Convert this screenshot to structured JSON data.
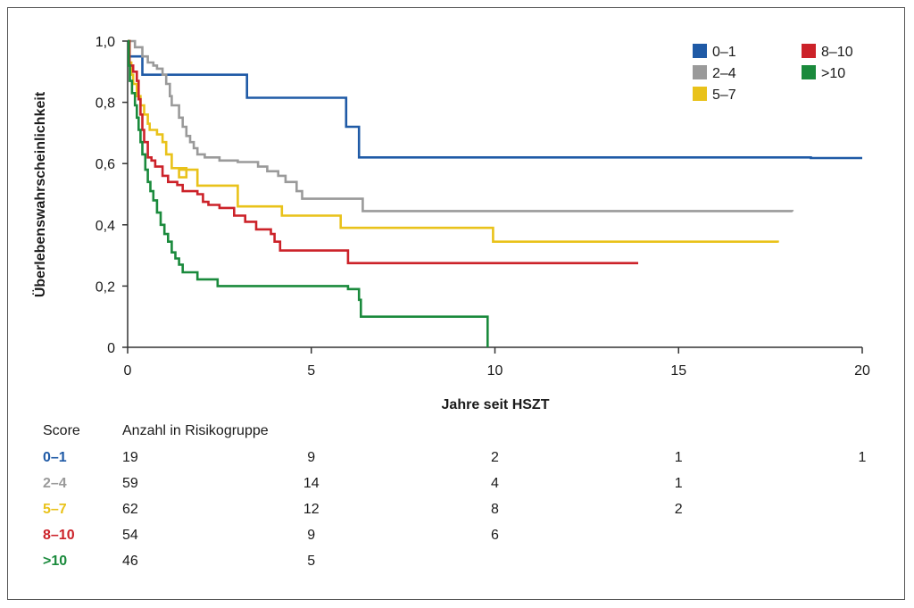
{
  "chart_data": {
    "type": "line",
    "step": true,
    "xlabel": "Jahre seit HSZT",
    "ylabel": "Überlebenswahrscheinlichkeit",
    "xlim": [
      0,
      20
    ],
    "ylim": [
      0,
      1
    ],
    "x_ticks": [
      0,
      5,
      10,
      15,
      20
    ],
    "x_tick_labels": [
      "0",
      "5",
      "10",
      "15",
      "20"
    ],
    "y_ticks": [
      0,
      0.2,
      0.4,
      0.6,
      0.8,
      1.0
    ],
    "y_tick_labels": [
      "0",
      "0,2",
      "0,4",
      "0,6",
      "0,8",
      "1,0"
    ],
    "grid": false,
    "legend_position": "top-right",
    "series": [
      {
        "name": "0–1",
        "color": "#1f5aa6",
        "points": [
          [
            0,
            1.0
          ],
          [
            0.05,
            0.95
          ],
          [
            0.4,
            0.89
          ],
          [
            3.25,
            0.815
          ],
          [
            5.95,
            0.72
          ],
          [
            6.3,
            0.62
          ],
          [
            18.6,
            0.618
          ],
          [
            20,
            0.618
          ]
        ]
      },
      {
        "name": "2–4",
        "color": "#9a9a9a",
        "points": [
          [
            0,
            1.0
          ],
          [
            0.2,
            0.98
          ],
          [
            0.4,
            0.95
          ],
          [
            0.55,
            0.93
          ],
          [
            0.7,
            0.92
          ],
          [
            0.8,
            0.91
          ],
          [
            0.95,
            0.89
          ],
          [
            1.05,
            0.86
          ],
          [
            1.15,
            0.82
          ],
          [
            1.2,
            0.79
          ],
          [
            1.4,
            0.75
          ],
          [
            1.5,
            0.72
          ],
          [
            1.6,
            0.69
          ],
          [
            1.7,
            0.67
          ],
          [
            1.8,
            0.65
          ],
          [
            1.9,
            0.63
          ],
          [
            2.1,
            0.62
          ],
          [
            2.5,
            0.61
          ],
          [
            3.0,
            0.605
          ],
          [
            3.55,
            0.59
          ],
          [
            3.8,
            0.575
          ],
          [
            4.1,
            0.56
          ],
          [
            4.3,
            0.54
          ],
          [
            4.6,
            0.51
          ],
          [
            4.75,
            0.485
          ],
          [
            6.4,
            0.445
          ],
          [
            18.1,
            0.444
          ]
        ]
      },
      {
        "name": "5–7",
        "color": "#e9c21a",
        "points": [
          [
            0,
            1.0
          ],
          [
            0.05,
            0.93
          ],
          [
            0.1,
            0.89
          ],
          [
            0.15,
            0.86
          ],
          [
            0.25,
            0.82
          ],
          [
            0.35,
            0.79
          ],
          [
            0.45,
            0.76
          ],
          [
            0.55,
            0.73
          ],
          [
            0.6,
            0.71
          ],
          [
            0.8,
            0.695
          ],
          [
            0.95,
            0.67
          ],
          [
            1.05,
            0.63
          ],
          [
            1.2,
            0.585
          ],
          [
            1.6,
            0.555
          ],
          [
            1.4,
            0.58
          ],
          [
            1.9,
            0.528
          ],
          [
            3.0,
            0.46
          ],
          [
            4.2,
            0.43
          ],
          [
            5.8,
            0.39
          ],
          [
            9.95,
            0.345
          ],
          [
            17.7,
            0.342
          ]
        ]
      },
      {
        "name": "8–10",
        "color": "#cc2229",
        "points": [
          [
            0,
            1.0
          ],
          [
            0.05,
            0.92
          ],
          [
            0.15,
            0.9
          ],
          [
            0.25,
            0.87
          ],
          [
            0.3,
            0.81
          ],
          [
            0.35,
            0.76
          ],
          [
            0.4,
            0.71
          ],
          [
            0.45,
            0.67
          ],
          [
            0.55,
            0.62
          ],
          [
            0.65,
            0.61
          ],
          [
            0.75,
            0.59
          ],
          [
            0.95,
            0.56
          ],
          [
            1.1,
            0.54
          ],
          [
            1.35,
            0.53
          ],
          [
            1.5,
            0.51
          ],
          [
            1.9,
            0.5
          ],
          [
            2.05,
            0.475
          ],
          [
            2.2,
            0.465
          ],
          [
            2.5,
            0.455
          ],
          [
            2.9,
            0.43
          ],
          [
            3.2,
            0.41
          ],
          [
            3.5,
            0.385
          ],
          [
            3.9,
            0.37
          ],
          [
            4.0,
            0.345
          ],
          [
            4.15,
            0.316
          ],
          [
            6.0,
            0.275
          ],
          [
            13.9,
            0.275
          ]
        ]
      },
      {
        "name": ">10",
        "color": "#1a8a3c",
        "points": [
          [
            0,
            1.0
          ],
          [
            0.03,
            0.92
          ],
          [
            0.06,
            0.87
          ],
          [
            0.12,
            0.83
          ],
          [
            0.2,
            0.79
          ],
          [
            0.25,
            0.75
          ],
          [
            0.3,
            0.71
          ],
          [
            0.35,
            0.67
          ],
          [
            0.4,
            0.63
          ],
          [
            0.48,
            0.58
          ],
          [
            0.55,
            0.54
          ],
          [
            0.62,
            0.51
          ],
          [
            0.7,
            0.48
          ],
          [
            0.8,
            0.44
          ],
          [
            0.9,
            0.4
          ],
          [
            1.0,
            0.37
          ],
          [
            1.1,
            0.345
          ],
          [
            1.2,
            0.31
          ],
          [
            1.3,
            0.29
          ],
          [
            1.4,
            0.27
          ],
          [
            1.5,
            0.245
          ],
          [
            1.9,
            0.222
          ],
          [
            2.45,
            0.2
          ],
          [
            6.0,
            0.19
          ],
          [
            6.3,
            0.155
          ],
          [
            6.35,
            0.1
          ],
          [
            9.8,
            0.1
          ],
          [
            9.8,
            0.0
          ]
        ]
      }
    ]
  },
  "risk_table": {
    "header_score": "Score",
    "header_count": "Anzahl in Risikogruppe",
    "rows": [
      {
        "score": "0–1",
        "color": "#1f5aa6",
        "counts": [
          "19",
          "9",
          "2",
          "1",
          "1"
        ]
      },
      {
        "score": "2–4",
        "color": "#9a9a9a",
        "counts": [
          "59",
          "14",
          "4",
          "1",
          ""
        ]
      },
      {
        "score": "5–7",
        "color": "#e9c21a",
        "counts": [
          "62",
          "12",
          "8",
          "2",
          ""
        ]
      },
      {
        "score": "8–10",
        "color": "#cc2229",
        "counts": [
          "54",
          "9",
          "6",
          "",
          ""
        ]
      },
      {
        "score": ">10",
        "color": "#1a8a3c",
        "counts": [
          "46",
          "5",
          "",
          "",
          ""
        ]
      }
    ]
  }
}
